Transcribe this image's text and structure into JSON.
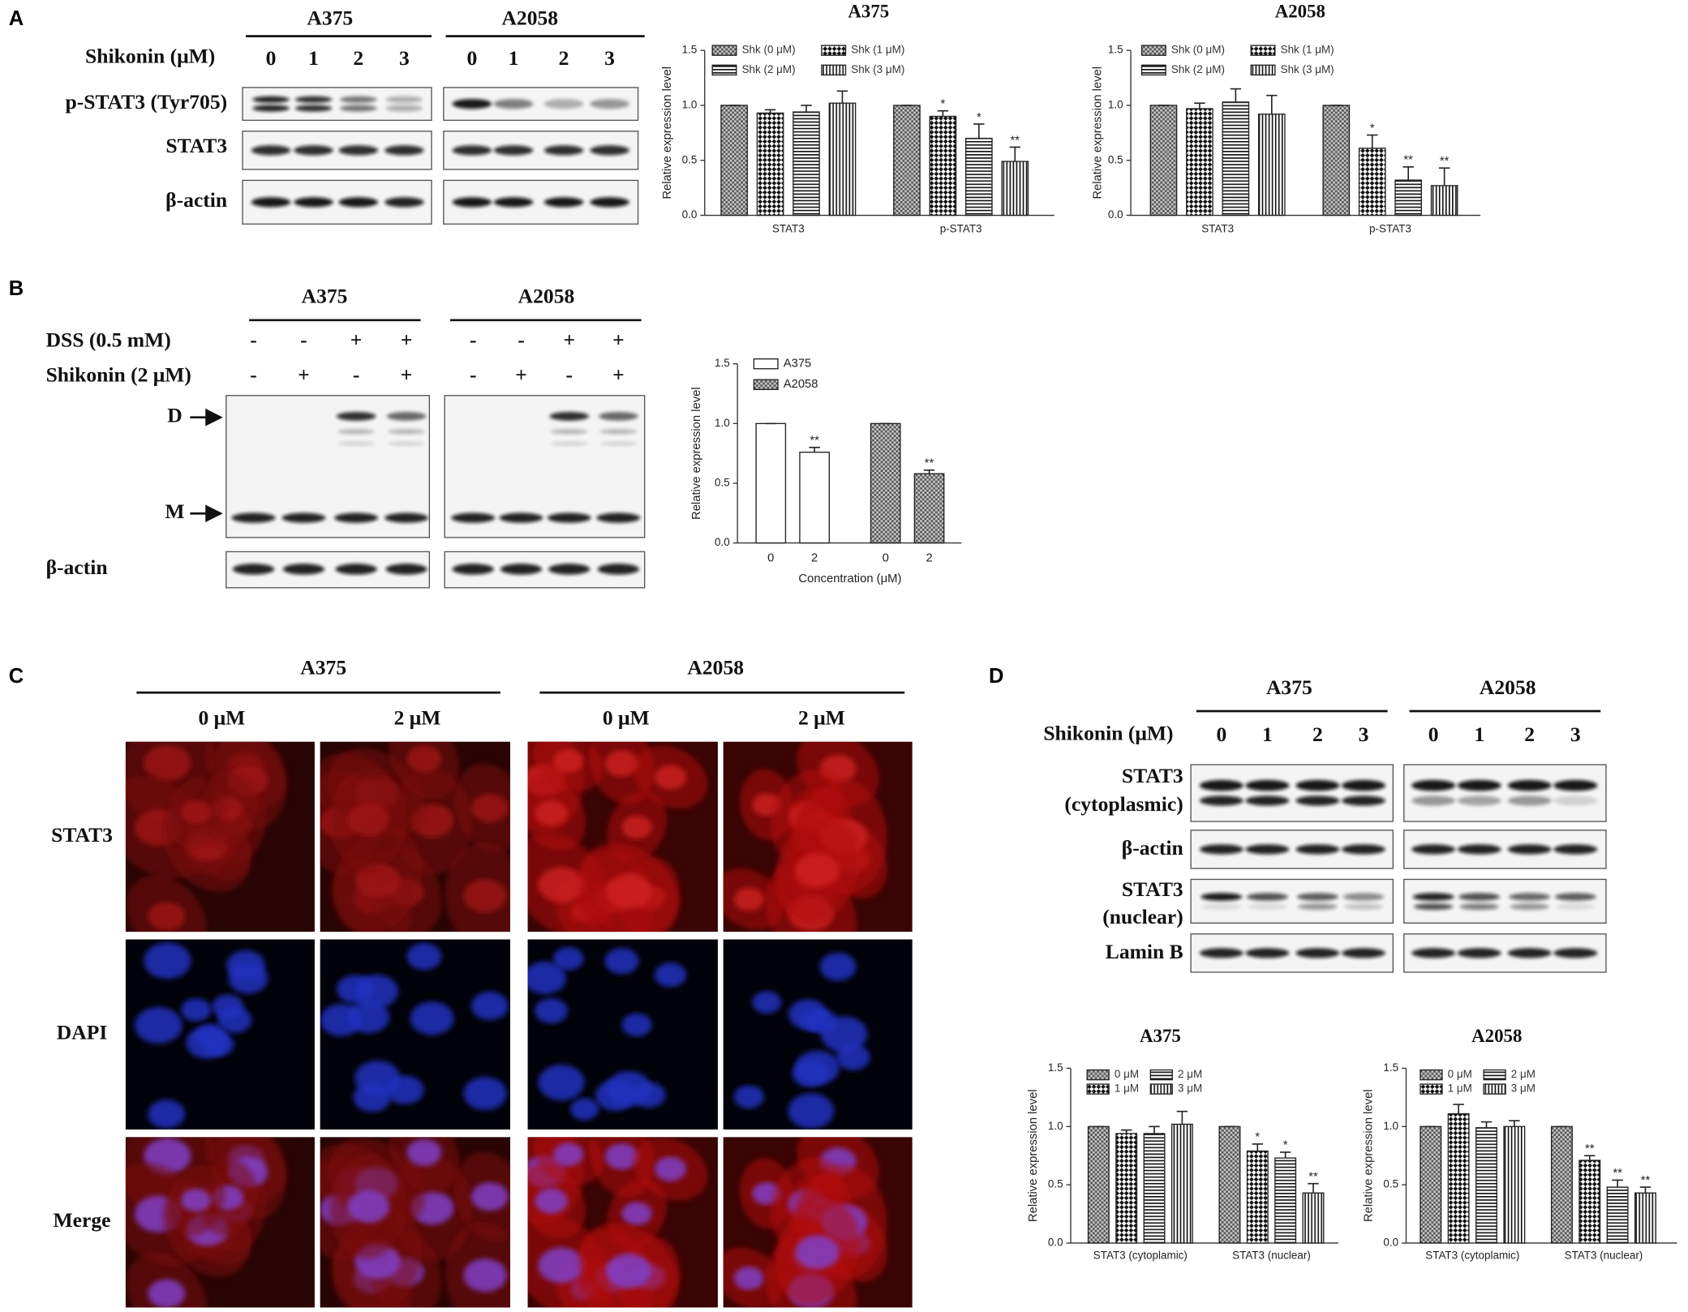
{
  "panel_labels": [
    "A",
    "B",
    "C",
    "D"
  ],
  "blot_a": {
    "cell_lines": [
      "A375",
      "A2058"
    ],
    "treatment": "Shikonin (μM)",
    "doses": [
      "0",
      "1",
      "2",
      "3"
    ],
    "rows": [
      "p-STAT3 (Tyr705)",
      "STAT3",
      "β-actin"
    ]
  },
  "blot_b": {
    "cell_lines": [
      "A375",
      "A2058"
    ],
    "conditions": [
      {
        "label": "DSS (0.5 mM)",
        "signs": [
          "-",
          "-",
          "+",
          "+"
        ]
      },
      {
        "label": "Shikonin (2 μM)",
        "signs": [
          "-",
          "+",
          "-",
          "+"
        ]
      }
    ],
    "markers": [
      "D",
      "M"
    ],
    "rows": [
      "β-actin"
    ]
  },
  "panel_c": {
    "cell_lines": [
      "A375",
      "A2058"
    ],
    "doses": [
      "0 μM",
      "2 μM"
    ],
    "rows": [
      "STAT3",
      "DAPI",
      "Merge"
    ]
  },
  "blot_d": {
    "cell_lines": [
      "A375",
      "A2058"
    ],
    "treatment": "Shikonin (μM)",
    "doses": [
      "0",
      "1",
      "2",
      "3"
    ],
    "rows": [
      [
        "STAT3",
        "(cytoplasmic)"
      ],
      [
        "β-actin"
      ],
      [
        "STAT3",
        "(nuclear)"
      ],
      [
        "Lamin B"
      ]
    ]
  },
  "chart_data": [
    {
      "type": "bar",
      "title": "A375",
      "ylabel": "Relative expression level",
      "grouping": "by-category",
      "categories": [
        "STAT3",
        "p-STAT3"
      ],
      "series": [
        {
          "name": "Shk (0 μM)",
          "color": "#222222",
          "pattern": "fine-check",
          "values": [
            1.0,
            1.0
          ],
          "errors": [
            0,
            0
          ],
          "significance": [
            null,
            null
          ]
        },
        {
          "name": "Shk (1 μM)",
          "color": "#222222",
          "pattern": "check",
          "values": [
            0.93,
            0.9
          ],
          "errors": [
            0.03,
            0.05
          ],
          "significance": [
            null,
            "*"
          ]
        },
        {
          "name": "Shk (2 μM)",
          "color": "#222222",
          "pattern": "hlines",
          "values": [
            0.94,
            0.7
          ],
          "errors": [
            0.06,
            0.13
          ],
          "significance": [
            null,
            "*"
          ]
        },
        {
          "name": "Shk (3 μM)",
          "color": "#222222",
          "pattern": "vlines",
          "values": [
            1.02,
            0.49
          ],
          "errors": [
            0.11,
            0.13
          ],
          "significance": [
            null,
            "**"
          ]
        }
      ],
      "ylim": [
        0,
        1.5
      ],
      "yticks": [
        {
          "value": 0,
          "label": "0.0"
        },
        {
          "value": 0.5,
          "label": "0.5"
        },
        {
          "value": 1,
          "label": "1.0"
        },
        {
          "value": 1.5,
          "label": "1.5"
        }
      ],
      "legend_columns": 2,
      "legend_order": "row-major"
    },
    {
      "type": "bar",
      "title": "A2058",
      "ylabel": "Relative expression level",
      "grouping": "by-category",
      "categories": [
        "STAT3",
        "p-STAT3"
      ],
      "series": [
        {
          "name": "Shk (0 μM)",
          "color": "#222222",
          "pattern": "fine-check",
          "values": [
            1.0,
            1.0
          ],
          "errors": [
            0,
            0
          ],
          "significance": [
            null,
            null
          ]
        },
        {
          "name": "Shk (1 μM)",
          "color": "#222222",
          "pattern": "check",
          "values": [
            0.97,
            0.61
          ],
          "errors": [
            0.05,
            0.12
          ],
          "significance": [
            null,
            "*"
          ]
        },
        {
          "name": "Shk (2 μM)",
          "color": "#222222",
          "pattern": "hlines",
          "values": [
            1.03,
            0.32
          ],
          "errors": [
            0.12,
            0.12
          ],
          "significance": [
            null,
            "**"
          ]
        },
        {
          "name": "Shk (3 μM)",
          "color": "#222222",
          "pattern": "vlines",
          "values": [
            0.92,
            0.27
          ],
          "errors": [
            0.17,
            0.16
          ],
          "significance": [
            null,
            "**"
          ]
        }
      ],
      "ylim": [
        0,
        1.5
      ],
      "yticks": [
        {
          "value": 0,
          "label": "0.0"
        },
        {
          "value": 0.5,
          "label": "0.5"
        },
        {
          "value": 1,
          "label": "1.0"
        },
        {
          "value": 1.5,
          "label": "1.5"
        }
      ],
      "legend_columns": 2,
      "legend_order": "row-major"
    },
    {
      "type": "bar",
      "ylabel": "Relative expression level",
      "xlabel": "Concentration (μM)",
      "grouping": "by-series",
      "categories": [
        "0",
        "2"
      ],
      "series": [
        {
          "name": "A375",
          "color": "#222222",
          "pattern": "plain",
          "values": [
            1.0,
            0.76
          ],
          "errors": [
            0,
            0.04
          ],
          "significance": [
            null,
            "**"
          ]
        },
        {
          "name": "A2058",
          "color": "#222222",
          "pattern": "fine-check",
          "values": [
            1.0,
            0.58
          ],
          "errors": [
            0,
            0.03
          ],
          "significance": [
            null,
            "**"
          ]
        }
      ],
      "ylim": [
        0,
        1.5
      ],
      "yticks": [
        {
          "value": 0,
          "label": "0.0"
        },
        {
          "value": 0.5,
          "label": "0.5"
        },
        {
          "value": 1,
          "label": "1.0"
        },
        {
          "value": 1.5,
          "label": "1.5"
        }
      ],
      "legend_columns": 1,
      "legend_order": "column-major"
    },
    {
      "type": "bar",
      "title": "A375",
      "ylabel": "Relative expression level",
      "grouping": "by-category",
      "categories": [
        "STAT3 (cytoplamic)",
        "STAT3 (nuclear)"
      ],
      "series": [
        {
          "name": "0 μM",
          "color": "#222222",
          "pattern": "fine-check",
          "values": [
            1.0,
            1.0
          ],
          "errors": [
            0,
            0
          ],
          "significance": [
            null,
            null
          ]
        },
        {
          "name": "1 μM",
          "color": "#222222",
          "pattern": "check",
          "values": [
            0.94,
            0.79
          ],
          "errors": [
            0.03,
            0.06
          ],
          "significance": [
            null,
            "*"
          ]
        },
        {
          "name": "2 μM",
          "color": "#222222",
          "pattern": "hlines",
          "values": [
            0.94,
            0.73
          ],
          "errors": [
            0.06,
            0.05
          ],
          "significance": [
            null,
            "*"
          ]
        },
        {
          "name": "3 μM",
          "color": "#222222",
          "pattern": "vlines",
          "values": [
            1.02,
            0.43
          ],
          "errors": [
            0.11,
            0.08
          ],
          "significance": [
            null,
            "**"
          ]
        }
      ],
      "ylim": [
        0,
        1.5
      ],
      "yticks": [
        {
          "value": 0,
          "label": "0.0"
        },
        {
          "value": 0.5,
          "label": "0.5"
        },
        {
          "value": 1,
          "label": "1.0"
        },
        {
          "value": 1.5,
          "label": "1.5"
        }
      ],
      "legend_columns": 2,
      "legend_order": "column-major"
    },
    {
      "type": "bar",
      "title": "A2058",
      "ylabel": "Relative expression level",
      "grouping": "by-category",
      "categories": [
        "STAT3 (cytoplamic)",
        "STAT3 (nuclear)"
      ],
      "series": [
        {
          "name": "0 μM",
          "color": "#222222",
          "pattern": "fine-check",
          "values": [
            1.0,
            1.0
          ],
          "errors": [
            0,
            0
          ],
          "significance": [
            null,
            null
          ]
        },
        {
          "name": "1 μM",
          "color": "#222222",
          "pattern": "check",
          "values": [
            1.11,
            0.71
          ],
          "errors": [
            0.08,
            0.04
          ],
          "significance": [
            null,
            "**"
          ]
        },
        {
          "name": "2 μM",
          "color": "#222222",
          "pattern": "hlines",
          "values": [
            0.99,
            0.48
          ],
          "errors": [
            0.05,
            0.06
          ],
          "significance": [
            null,
            "**"
          ]
        },
        {
          "name": "3 μM",
          "color": "#222222",
          "pattern": "vlines",
          "values": [
            1.0,
            0.43
          ],
          "errors": [
            0.05,
            0.05
          ],
          "significance": [
            null,
            "**"
          ]
        }
      ],
      "ylim": [
        0,
        1.5
      ],
      "yticks": [
        {
          "value": 0,
          "label": "0.0"
        },
        {
          "value": 0.5,
          "label": "0.5"
        },
        {
          "value": 1,
          "label": "1.0"
        },
        {
          "value": 1.5,
          "label": "1.5"
        }
      ],
      "legend_columns": 2,
      "legend_order": "column-major"
    }
  ]
}
